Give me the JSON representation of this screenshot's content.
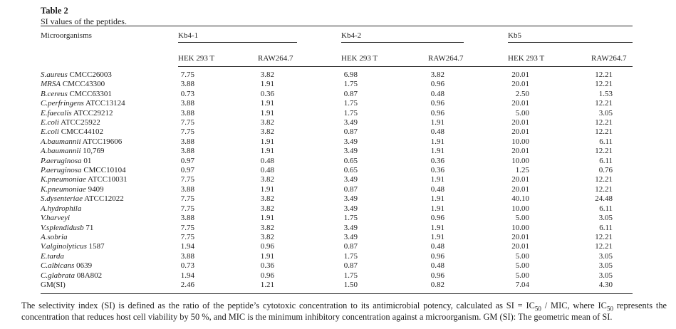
{
  "table_label": "Table 2",
  "caption": "SI values of the peptides.",
  "columns": {
    "microorganisms": "Microorganisms",
    "groups": [
      {
        "name": "Kb4-1",
        "sub": [
          "HEK 293 T",
          "RAW264.7"
        ]
      },
      {
        "name": "Kb4-2",
        "sub": [
          "HEK 293 T",
          "RAW264.7"
        ]
      },
      {
        "name": "Kb5",
        "sub": [
          "HEK 293 T",
          "RAW264.7"
        ]
      }
    ]
  },
  "rows": [
    {
      "sp": "S.aureus",
      "id": "CMCC26003",
      "v": [
        "7.75",
        "3.82",
        "6.98",
        "3.82",
        "20.01",
        "12.21"
      ]
    },
    {
      "sp": "MRSA",
      "id": "CMCC43300",
      "v": [
        "3.88",
        "1.91",
        "1.75",
        "0.96",
        "20.01",
        "12.21"
      ]
    },
    {
      "sp": "B.cereus",
      "id": "CMCC63301",
      "v": [
        "0.73",
        "0.36",
        "0.87",
        "0.48",
        "2.50",
        "1.53"
      ]
    },
    {
      "sp": "C.perfringens",
      "id": "ATCC13124",
      "v": [
        "3.88",
        "1.91",
        "1.75",
        "0.96",
        "20.01",
        "12.21"
      ]
    },
    {
      "sp": "E.faecalis",
      "id": "ATCC29212",
      "v": [
        "3.88",
        "1.91",
        "1.75",
        "0.96",
        "5.00",
        "3.05"
      ]
    },
    {
      "sp": "E.coli",
      "id": "ATCC25922",
      "v": [
        "7.75",
        "3.82",
        "3.49",
        "1.91",
        "20.01",
        "12.21"
      ]
    },
    {
      "sp": "E.coli",
      "id": "CMCC44102",
      "v": [
        "7.75",
        "3.82",
        "0.87",
        "0.48",
        "20.01",
        "12.21"
      ]
    },
    {
      "sp": "A.baumannii",
      "id": "ATCC19606",
      "v": [
        "3.88",
        "1.91",
        "3.49",
        "1.91",
        "10.00",
        "6.11"
      ]
    },
    {
      "sp": "A.baumannii",
      "id": "10,769",
      "v": [
        "3.88",
        "1.91",
        "3.49",
        "1.91",
        "20.01",
        "12.21"
      ]
    },
    {
      "sp": "P.aeruginosa",
      "id": "01",
      "v": [
        "0.97",
        "0.48",
        "0.65",
        "0.36",
        "10.00",
        "6.11"
      ]
    },
    {
      "sp": "P.aeruginosa",
      "id": "CMCC10104",
      "v": [
        "0.97",
        "0.48",
        "0.65",
        "0.36",
        "1.25",
        "0.76"
      ]
    },
    {
      "sp": "K.pneumoniae",
      "id": "ATCC10031",
      "v": [
        "7.75",
        "3.82",
        "3.49",
        "1.91",
        "20.01",
        "12.21"
      ]
    },
    {
      "sp": "K.pneumoniae",
      "id": "9409",
      "v": [
        "3.88",
        "1.91",
        "0.87",
        "0.48",
        "20.01",
        "12.21"
      ]
    },
    {
      "sp": "S.dysenteriae",
      "id": "ATCC12022",
      "v": [
        "7.75",
        "3.82",
        "3.49",
        "1.91",
        "40.10",
        "24.48"
      ]
    },
    {
      "sp": "A.hydrophila",
      "id": "",
      "v": [
        "7.75",
        "3.82",
        "3.49",
        "1.91",
        "10.00",
        "6.11"
      ]
    },
    {
      "sp": "V.harveyi",
      "id": "",
      "v": [
        "3.88",
        "1.91",
        "1.75",
        "0.96",
        "5.00",
        "3.05"
      ]
    },
    {
      "sp": "V.splendidusb",
      "id": "71",
      "v": [
        "7.75",
        "3.82",
        "3.49",
        "1.91",
        "10.00",
        "6.11"
      ]
    },
    {
      "sp": "A.sobria",
      "id": "",
      "v": [
        "7.75",
        "3.82",
        "3.49",
        "1.91",
        "20.01",
        "12.21"
      ]
    },
    {
      "sp": "V.alginolyticus",
      "id": "1587",
      "v": [
        "1.94",
        "0.96",
        "0.87",
        "0.48",
        "20.01",
        "12.21"
      ]
    },
    {
      "sp": "E.tarda",
      "id": "",
      "v": [
        "3.88",
        "1.91",
        "1.75",
        "0.96",
        "5.00",
        "3.05"
      ]
    },
    {
      "sp": "C.albicans",
      "id": "0639",
      "v": [
        "0.73",
        "0.36",
        "0.87",
        "0.48",
        "5.00",
        "3.05"
      ]
    },
    {
      "sp": "C.glabrata",
      "id": "08A802",
      "v": [
        "1.94",
        "0.96",
        "1.75",
        "0.96",
        "5.00",
        "3.05"
      ]
    },
    {
      "sp": "",
      "id": "GM(SI)",
      "v": [
        "2.46",
        "1.21",
        "1.50",
        "0.82",
        "7.04",
        "4.30"
      ]
    }
  ],
  "footnote": {
    "seg1": "The selectivity index (SI) is defined as the ratio of the peptide’s cytotoxic concentration to its antimicrobial potency, calculated as SI = IC",
    "sub1": "50",
    "seg2": " / MIC, where IC",
    "sub2": "50",
    "seg3": " represents the concentration that reduces host cell viability by 50 %, and MIC is the minimum inhibitory concentration against a microorganism. GM (SI): The geometric mean of SI."
  }
}
